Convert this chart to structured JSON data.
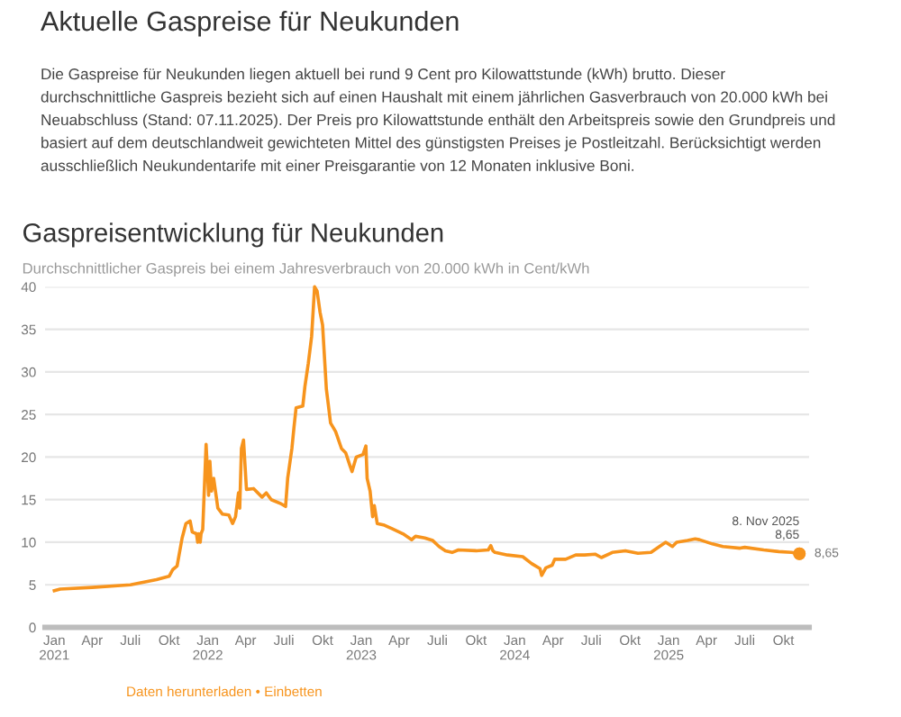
{
  "chart_data": {
    "type": "line",
    "title": "Gaspreisentwicklung für Neukunden",
    "subtitle": "Durchschnittlicher Gaspreis bei einem Jahresverbrauch von 20.000 kWh in Cent/kWh",
    "annotations": [
      "Aktuelle Gaspreise für Neukunden",
      "Die Gaspreise für Neukunden liegen aktuell bei rund 9 Cent pro Kilowattstunde (kWh) brutto. Dieser\ndurchschnittliche Gaspreis bezieht sich auf einen Haushalt mit einem jährlichen Gasverbrauch von 20.000 kWh bei\nNeuabschluss (Stand: 07.11.2025). Der Preis pro Kilowattstunde enthält den Arbeitspreis sowie den Grundpreis und\nbasiert auf dem deutschlandweit gewichteten Mittel des günstigsten Preises je Postleitzahl. Berücksichtigt werden\nausschließlich Neukundentarife mit einer Preisgarantie von 12 Monaten inklusive Boni.",
      "Daten herunterladen • Einbetten",
      {
        "text": "8. Nov 2025\n8,65",
        "x": "2025-11-08",
        "y": 8.65
      },
      {
        "text": "8,65",
        "x": "2025-11-08",
        "y": 8.65
      }
    ],
    "x": [
      "2021-01-01",
      "2021-01-15",
      "2021-04-01",
      "2021-07-01",
      "2021-09-01",
      "2021-10-01",
      "2021-10-10",
      "2021-10-20",
      "2021-11-01",
      "2021-11-10",
      "2021-11-20",
      "2021-11-25",
      "2021-12-05",
      "2021-12-08",
      "2021-12-10",
      "2021-12-14",
      "2021-12-16",
      "2021-12-20",
      "2021-12-28",
      "2022-01-03",
      "2022-01-06",
      "2022-01-10",
      "2022-01-15",
      "2022-01-25",
      "2022-02-05",
      "2022-02-20",
      "2022-03-01",
      "2022-03-08",
      "2022-03-15",
      "2022-03-18",
      "2022-03-22",
      "2022-03-27",
      "2022-04-03",
      "2022-04-20",
      "2022-05-10",
      "2022-05-20",
      "2022-06-01",
      "2022-06-25",
      "2022-07-05",
      "2022-07-10",
      "2022-07-20",
      "2022-07-25",
      "2022-07-30",
      "2022-08-15",
      "2022-08-20",
      "2022-08-28",
      "2022-09-05",
      "2022-09-12",
      "2022-09-18",
      "2022-09-25",
      "2022-10-01",
      "2022-10-10",
      "2022-10-20",
      "2022-11-01",
      "2022-11-15",
      "2022-11-25",
      "2022-12-05",
      "2022-12-10",
      "2022-12-20",
      "2023-01-05",
      "2023-01-12",
      "2023-01-15",
      "2023-01-22",
      "2023-01-28",
      "2023-02-01",
      "2023-02-08",
      "2023-02-25",
      "2023-03-15",
      "2023-04-10",
      "2023-05-01",
      "2023-05-10",
      "2023-06-01",
      "2023-06-20",
      "2023-07-05",
      "2023-07-20",
      "2023-08-05",
      "2023-08-20",
      "2023-10-01",
      "2023-10-30",
      "2023-11-05",
      "2023-11-10",
      "2023-11-15",
      "2023-12-15",
      "2024-01-20",
      "2024-02-10",
      "2024-03-01",
      "2024-03-05",
      "2024-03-15",
      "2024-03-30",
      "2024-04-05",
      "2024-05-01",
      "2024-05-25",
      "2024-06-15",
      "2024-07-10",
      "2024-07-25",
      "2024-08-20",
      "2024-09-20",
      "2024-10-20",
      "2024-11-20",
      "2024-12-10",
      "2024-12-25",
      "2025-01-10",
      "2025-01-20",
      "2025-02-15",
      "2025-03-05",
      "2025-03-15",
      "2025-04-15",
      "2025-05-10",
      "2025-06-20",
      "2025-07-01",
      "2025-08-15",
      "2025-09-20",
      "2025-10-20",
      "2025-11-08"
    ],
    "series": [
      {
        "color": "#f7941d",
        "values": [
          4.3,
          4.5,
          4.7,
          5.0,
          5.6,
          6.0,
          6.8,
          7.2,
          10.5,
          12.2,
          12.5,
          11.2,
          11.0,
          10.0,
          11.0,
          10.0,
          11.0,
          11.5,
          21.5,
          15.5,
          19.5,
          16.0,
          17.5,
          14.0,
          13.3,
          13.2,
          12.2,
          13.0,
          15.8,
          14.0,
          21.0,
          22.0,
          16.2,
          16.3,
          15.3,
          15.8,
          15.0,
          14.5,
          14.2,
          17.5,
          21.0,
          23.5,
          25.8,
          26.0,
          28.3,
          31.0,
          34.2,
          40.0,
          39.5,
          37.0,
          35.5,
          28.0,
          24.0,
          23.0,
          21.0,
          20.5,
          19.0,
          18.3,
          20.0,
          20.3,
          21.3,
          17.5,
          16.0,
          13.0,
          14.3,
          12.2,
          12.0,
          11.6,
          11.0,
          10.3,
          10.7,
          10.5,
          10.2,
          9.5,
          9.0,
          8.8,
          9.1,
          9.0,
          9.1,
          9.6,
          9.0,
          8.8,
          8.5,
          8.3,
          7.5,
          6.9,
          6.1,
          7.0,
          7.3,
          8.0,
          8.0,
          8.5,
          8.5,
          8.6,
          8.2,
          8.8,
          9.0,
          8.7,
          8.8,
          9.5,
          10.0,
          9.5,
          10.0,
          10.2,
          10.4,
          10.3,
          9.8,
          9.5,
          9.3,
          9.4,
          9.1,
          8.9,
          8.8,
          8.65
        ]
      }
    ],
    "xlim": [
      "2020-12-10",
      "2025-12-01"
    ],
    "ylim": [
      0,
      40
    ],
    "yticks": [
      0,
      5,
      10,
      15,
      20,
      25,
      30,
      35,
      40
    ],
    "xticks": [
      {
        "value": "2021-01-01",
        "label": "Jan\n2021"
      },
      {
        "value": "2021-04-01",
        "label": "Apr"
      },
      {
        "value": "2021-07-01",
        "label": "Juli"
      },
      {
        "value": "2021-10-01",
        "label": "Okt"
      },
      {
        "value": "2022-01-01",
        "label": "Jan\n2022"
      },
      {
        "value": "2022-04-01",
        "label": "Apr"
      },
      {
        "value": "2022-07-01",
        "label": "Juli"
      },
      {
        "value": "2022-10-01",
        "label": "Okt"
      },
      {
        "value": "2023-01-01",
        "label": "Jan\n2023"
      },
      {
        "value": "2023-04-01",
        "label": "Apr"
      },
      {
        "value": "2023-07-01",
        "label": "Juli"
      },
      {
        "value": "2023-10-01",
        "label": "Okt"
      },
      {
        "value": "2024-01-01",
        "label": "Jan\n2024"
      },
      {
        "value": "2024-04-01",
        "label": "Apr"
      },
      {
        "value": "2024-07-01",
        "label": "Juli"
      },
      {
        "value": "2024-10-01",
        "label": "Okt"
      },
      {
        "value": "2025-01-01",
        "label": "Jan\n2025"
      },
      {
        "value": "2025-04-01",
        "label": "Apr"
      },
      {
        "value": "2025-07-01",
        "label": "Juli"
      },
      {
        "value": "2025-10-01",
        "label": "Okt"
      }
    ],
    "grid": "y",
    "legend": false,
    "marker": "none",
    "line_style": "solid"
  }
}
